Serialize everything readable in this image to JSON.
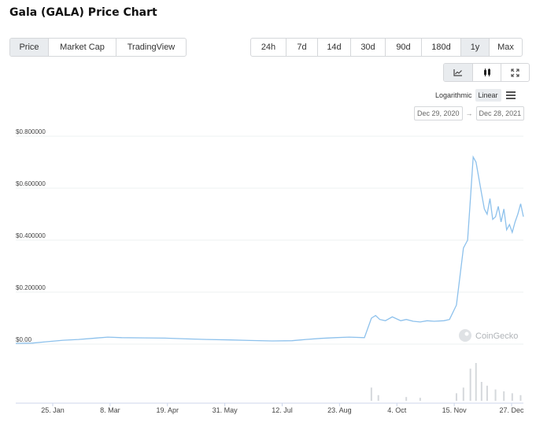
{
  "title": "Gala (GALA) Price Chart",
  "view_tabs": [
    {
      "label": "Price",
      "active": true
    },
    {
      "label": "Market Cap",
      "active": false
    },
    {
      "label": "TradingView",
      "active": false
    }
  ],
  "range_tabs": [
    {
      "label": "24h",
      "active": false
    },
    {
      "label": "7d",
      "active": false
    },
    {
      "label": "14d",
      "active": false
    },
    {
      "label": "30d",
      "active": false
    },
    {
      "label": "90d",
      "active": false
    },
    {
      "label": "180d",
      "active": false
    },
    {
      "label": "1y",
      "active": true
    },
    {
      "label": "Max",
      "active": false
    }
  ],
  "chart_type_icons": [
    "line-chart-icon",
    "candlestick-icon",
    "fullscreen-icon"
  ],
  "scale": {
    "log_label": "Logarithmic",
    "linear_label": "Linear",
    "selected": "Linear"
  },
  "date_range": {
    "from": "Dec 29, 2020",
    "arrow": "→",
    "to": "Dec 28, 2021"
  },
  "watermark": "CoinGecko",
  "colors": {
    "line": "#8dc1ec",
    "volume": "#d5d8dc",
    "grid": "#eef0f2",
    "active_btn": "#e9ecef"
  },
  "chart_data": {
    "type": "line",
    "ylim": [
      0,
      0.8
    ],
    "y_ticks": [
      "$0.800000",
      "$0.600000",
      "$0.400000",
      "$0.200000",
      "$0.00"
    ],
    "x_ticks": [
      "25. Jan",
      "8. Mar",
      "19. Apr",
      "31. May",
      "12. Jul",
      "23. Aug",
      "4. Oct",
      "15. Nov",
      "27. Dec"
    ],
    "grid": true,
    "series": [
      {
        "x": [
          "2020-12-29",
          "2021-01-10",
          "2021-01-20",
          "2021-02-01",
          "2021-02-12",
          "2021-02-22",
          "2021-03-05",
          "2021-03-15",
          "2021-04-01",
          "2021-04-15",
          "2021-05-01",
          "2021-05-15",
          "2021-06-01",
          "2021-06-15",
          "2021-07-01",
          "2021-07-15",
          "2021-07-25",
          "2021-08-05",
          "2021-08-15",
          "2021-08-25",
          "2021-09-05",
          "2021-09-10",
          "2021-09-13",
          "2021-09-16",
          "2021-09-20",
          "2021-09-25",
          "2021-10-01",
          "2021-10-05",
          "2021-10-10",
          "2021-10-15",
          "2021-10-20",
          "2021-10-25",
          "2021-11-01",
          "2021-11-05",
          "2021-11-10",
          "2021-11-15",
          "2021-11-18",
          "2021-11-20",
          "2021-11-22",
          "2021-11-24",
          "2021-11-26",
          "2021-11-28",
          "2021-11-30",
          "2021-12-02",
          "2021-12-04",
          "2021-12-06",
          "2021-12-08",
          "2021-12-10",
          "2021-12-12",
          "2021-12-14",
          "2021-12-16",
          "2021-12-18",
          "2021-12-20",
          "2021-12-22",
          "2021-12-24",
          "2021-12-26",
          "2021-12-28"
        ],
        "y": [
          0.003,
          0.004,
          0.009,
          0.015,
          0.018,
          0.022,
          0.027,
          0.025,
          0.024,
          0.023,
          0.02,
          0.018,
          0.016,
          0.014,
          0.012,
          0.013,
          0.018,
          0.022,
          0.025,
          0.027,
          0.025,
          0.1,
          0.11,
          0.095,
          0.09,
          0.105,
          0.09,
          0.095,
          0.088,
          0.085,
          0.09,
          0.088,
          0.09,
          0.095,
          0.15,
          0.37,
          0.4,
          0.56,
          0.72,
          0.7,
          0.64,
          0.58,
          0.52,
          0.5,
          0.56,
          0.48,
          0.49,
          0.53,
          0.47,
          0.52,
          0.44,
          0.46,
          0.43,
          0.47,
          0.5,
          0.54,
          0.49
        ]
      }
    ],
    "volume": {
      "x": [
        "2021-09-10",
        "2021-09-15",
        "2021-10-05",
        "2021-10-15",
        "2021-11-10",
        "2021-11-15",
        "2021-11-20",
        "2021-11-24",
        "2021-11-28",
        "2021-12-02",
        "2021-12-08",
        "2021-12-14",
        "2021-12-20",
        "2021-12-26"
      ],
      "y": [
        0.35,
        0.15,
        0.1,
        0.08,
        0.2,
        0.35,
        0.85,
        1.0,
        0.5,
        0.4,
        0.3,
        0.25,
        0.2,
        0.15
      ]
    }
  }
}
